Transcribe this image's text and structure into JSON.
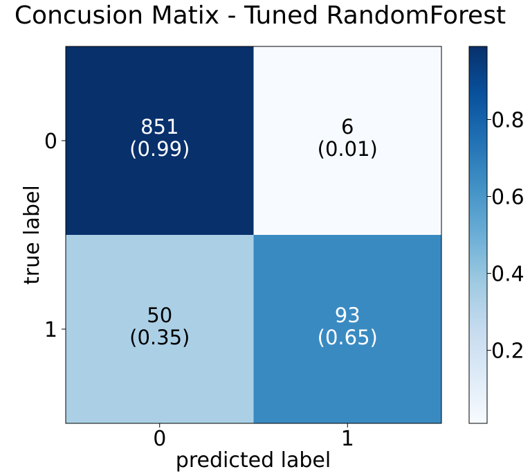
{
  "chart_data": {
    "type": "heatmap",
    "title": "Concusion Matix - Tuned RandomForest",
    "xlabel": "predicted label",
    "ylabel": "true label",
    "x_categories": [
      "0",
      "1"
    ],
    "y_categories": [
      "0",
      "1"
    ],
    "cells": [
      [
        {
          "count": "851",
          "ratio": "(0.99)",
          "value": 0.99
        },
        {
          "count": "6",
          "ratio": "(0.01)",
          "value": 0.01
        }
      ],
      [
        {
          "count": "50",
          "ratio": "(0.35)",
          "value": 0.35
        },
        {
          "count": "93",
          "ratio": "(0.65)",
          "value": 0.65
        }
      ]
    ],
    "colorbar": {
      "colormap": "Blues",
      "range": [
        0.01,
        0.99
      ],
      "ticks": [
        "0.2",
        "0.4",
        "0.6",
        "0.8"
      ],
      "tick_values": [
        0.2,
        0.4,
        0.6,
        0.8
      ]
    },
    "cell_colors": [
      [
        "#08306b",
        "#f7fbff"
      ],
      [
        "#abd0e6",
        "#3a8ac2"
      ]
    ],
    "text_colors": [
      [
        "#ffffff",
        "#000000"
      ],
      [
        "#000000",
        "#ffffff"
      ]
    ]
  }
}
